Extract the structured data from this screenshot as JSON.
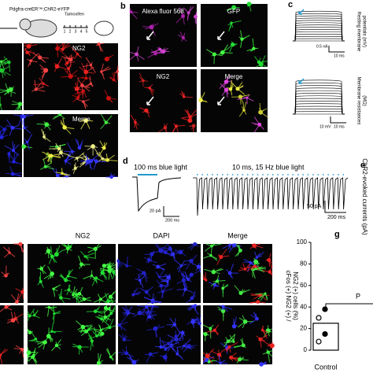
{
  "panel_a": {
    "genotype": "Pdgfra-creER™;ChR2-eYFP",
    "treatment": "Tamoxifen",
    "days": [
      "1",
      "2",
      "3",
      "4",
      "5"
    ],
    "images": [
      "NG2",
      "Merge"
    ]
  },
  "panel_b": {
    "label": "b",
    "images": [
      "Alexa fluor 568",
      "GFP",
      "NG2",
      "Merge"
    ]
  },
  "panel_c": {
    "label": "c",
    "top": {
      "y_label": [
        "Resting membrane",
        "potentials (mV)"
      ],
      "scale_y": "0.5 nA",
      "scale_x": "10 ms"
    },
    "bottom": {
      "y_label": [
        "Membrane resistances",
        "(MΩ)"
      ],
      "scale_y": "10 mV",
      "scale_x": "10 ms"
    }
  },
  "panel_d": {
    "label": "d",
    "left": {
      "title": "100 ms blue light",
      "scale_y": "20 pA",
      "scale_x": "50 ms"
    },
    "right": {
      "title": "10 ms, 15 Hz blue light",
      "scale_y": "50 pA",
      "scale_x": "200 ms"
    }
  },
  "panel_e": {
    "label": "e",
    "y_label": "ChR2-evoked currents (pA)"
  },
  "panel_f": {
    "columns": [
      "NG2",
      "DAPI",
      "Merge"
    ]
  },
  "panel_g": {
    "label": "g",
    "y_label": [
      "cFos (+) NG2 (+) /",
      "NG2 (+) cells (%)"
    ],
    "ylim": [
      0,
      100
    ],
    "yticks": [
      0,
      20,
      40,
      60,
      80,
      100
    ],
    "categories": [
      "Control"
    ],
    "values": [
      25
    ],
    "points": [
      8,
      15,
      30,
      38
    ],
    "annotation": "P"
  }
}
